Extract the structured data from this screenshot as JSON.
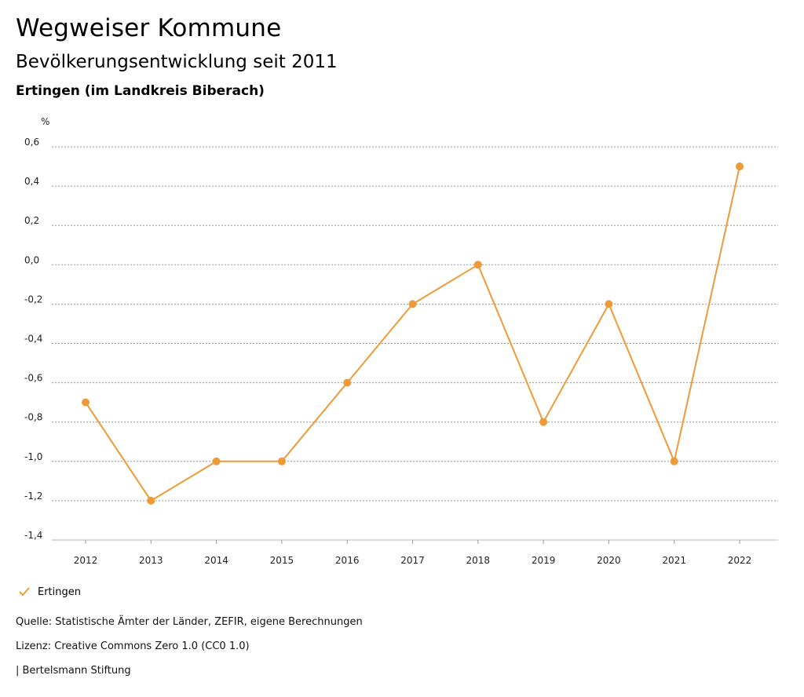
{
  "header": {
    "title": "Wegweiser Kommune",
    "subtitle": "Bevölkerungsentwicklung seit 2011",
    "region": "Ertingen (im Landkreis Biberach)"
  },
  "chart_data": {
    "type": "line",
    "ylabel": "%",
    "ylim": [
      -1.4,
      0.6
    ],
    "yticks": [
      0.6,
      0.4,
      0.2,
      0.0,
      -0.2,
      -0.4,
      -0.6,
      -0.8,
      -1.0,
      -1.2,
      -1.4
    ],
    "ytick_labels": [
      "0,6",
      "0,4",
      "0,2",
      "0,0",
      "-0,2",
      "-0,4",
      "-0,6",
      "-0,8",
      "-1,0",
      "-1,2",
      "-1,4"
    ],
    "categories": [
      "2012",
      "2013",
      "2014",
      "2015",
      "2016",
      "2017",
      "2018",
      "2019",
      "2020",
      "2021",
      "2022"
    ],
    "series": [
      {
        "name": "Ertingen",
        "color": "#ee9a37",
        "values": [
          -0.7,
          -1.2,
          -1.0,
          -1.0,
          -0.6,
          -0.2,
          0.0,
          -0.8,
          -0.2,
          -1.0,
          0.5
        ]
      }
    ],
    "grid": true,
    "legend": "bottom-left"
  },
  "legend": {
    "label": "Ertingen"
  },
  "footer": {
    "source": "Quelle: Statistische Ämter der Länder, ZEFIR, eigene Berechnungen",
    "license": "Lizenz: Creative Commons Zero 1.0 (CC0 1.0)",
    "publisher": "| Bertelsmann Stiftung"
  }
}
